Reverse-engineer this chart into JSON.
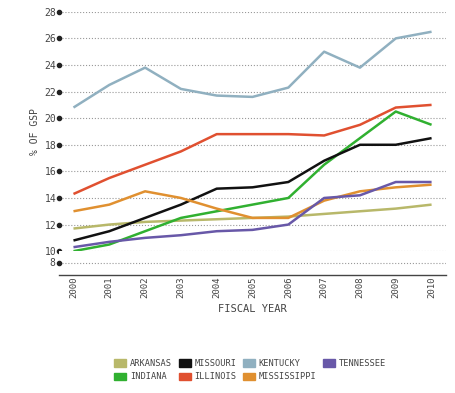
{
  "years": [
    2000,
    2001,
    2002,
    2003,
    2004,
    2005,
    2006,
    2007,
    2008,
    2009,
    2010
  ],
  "series": {
    "ARKANSAS": [
      11.7,
      12.0,
      12.2,
      12.3,
      12.4,
      12.5,
      12.6,
      12.8,
      13.0,
      13.2,
      13.5
    ],
    "INDIANA": [
      10.0,
      10.5,
      11.5,
      12.5,
      13.0,
      13.5,
      14.0,
      16.5,
      18.5,
      20.5,
      19.5
    ],
    "MISSOURI": [
      10.8,
      11.5,
      12.5,
      13.5,
      14.7,
      14.8,
      15.2,
      16.8,
      18.0,
      18.0,
      18.5
    ],
    "ILLINOIS": [
      14.3,
      15.5,
      16.5,
      17.5,
      18.8,
      18.8,
      18.8,
      18.7,
      19.5,
      20.8,
      21.0
    ],
    "KENTUCKY": [
      20.8,
      22.5,
      23.8,
      22.2,
      21.7,
      21.6,
      22.3,
      25.0,
      23.8,
      26.0,
      26.5
    ],
    "MISSISSIPPI": [
      13.0,
      13.5,
      14.5,
      14.0,
      13.2,
      12.5,
      12.5,
      13.8,
      14.5,
      14.8,
      15.0
    ],
    "TENNESSEE": [
      10.3,
      10.7,
      11.0,
      11.2,
      11.5,
      11.6,
      12.0,
      14.0,
      14.2,
      15.2,
      15.2
    ]
  },
  "colors": {
    "ARKANSAS": "#b8b86a",
    "INDIANA": "#30b030",
    "MISSOURI": "#111111",
    "ILLINOIS": "#e05030",
    "KENTUCKY": "#90b0c0",
    "MISSISSIPPI": "#e09030",
    "TENNESSEE": "#6858a8"
  },
  "legend_order_row1": [
    "ARKANSAS",
    "INDIANA",
    "MISSOURI",
    "ILLINOIS"
  ],
  "legend_order_row2": [
    "KENTUCKY",
    "MISSISSIPPI",
    "TENNESSEE"
  ],
  "ylim": [
    8,
    28
  ],
  "yticks": [
    8,
    10,
    12,
    14,
    16,
    18,
    20,
    22,
    24,
    26,
    28
  ],
  "ylabel": "% OF GSP",
  "xlabel": "FISCAL YEAR",
  "bg_color": "#ffffff",
  "grid_color": "#999999",
  "tick_color": "#444444",
  "dot_color": "#222222",
  "linewidth": 1.8
}
